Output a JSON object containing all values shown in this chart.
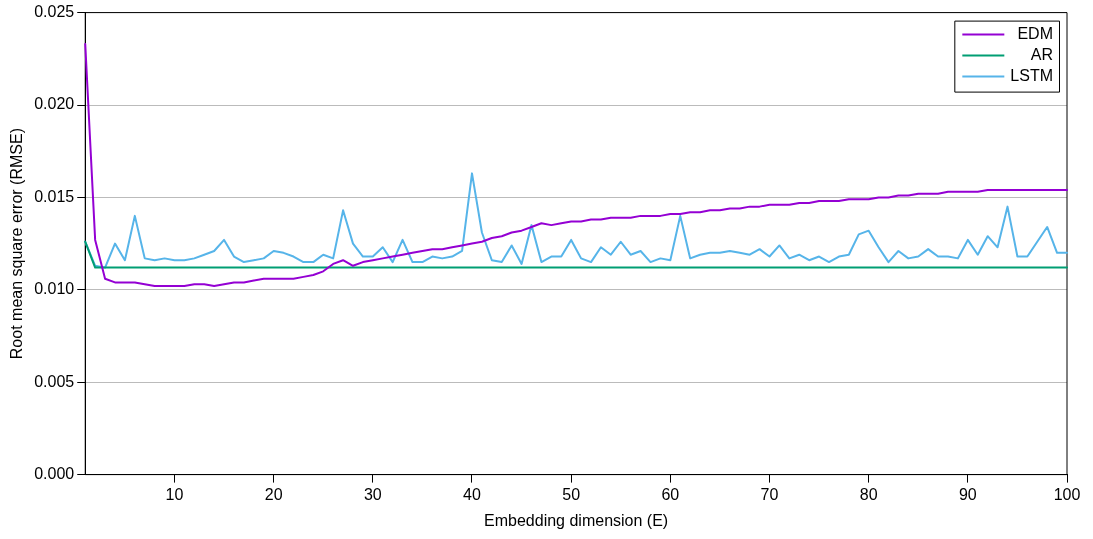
{
  "chart_data": {
    "type": "line",
    "xlabel": "Embedding dimension (E)",
    "ylabel": "Root mean square error (RMSE)",
    "x": [
      1,
      2,
      3,
      4,
      5,
      6,
      7,
      8,
      9,
      10,
      11,
      12,
      13,
      14,
      15,
      16,
      17,
      18,
      19,
      20,
      21,
      22,
      23,
      24,
      25,
      26,
      27,
      28,
      29,
      30,
      31,
      32,
      33,
      34,
      35,
      36,
      37,
      38,
      39,
      40,
      41,
      42,
      43,
      44,
      45,
      46,
      47,
      48,
      49,
      50,
      51,
      52,
      53,
      54,
      55,
      56,
      57,
      58,
      59,
      60,
      61,
      62,
      63,
      64,
      65,
      66,
      67,
      68,
      69,
      70,
      71,
      72,
      73,
      74,
      75,
      76,
      77,
      78,
      79,
      80,
      81,
      82,
      83,
      84,
      85,
      86,
      87,
      88,
      89,
      90,
      91,
      92,
      93,
      94,
      95,
      96,
      97,
      98,
      99,
      100
    ],
    "series": [
      {
        "name": "EDM",
        "color": "#9400d3",
        "values": [
          0.0233,
          0.0127,
          0.0106,
          0.0104,
          0.0104,
          0.0104,
          0.0103,
          0.0102,
          0.0102,
          0.0102,
          0.0102,
          0.0103,
          0.0103,
          0.0102,
          0.0103,
          0.0104,
          0.0104,
          0.0105,
          0.0106,
          0.0106,
          0.0106,
          0.0106,
          0.0107,
          0.0108,
          0.011,
          0.0114,
          0.0116,
          0.0113,
          0.0115,
          0.0116,
          0.0117,
          0.0118,
          0.0119,
          0.012,
          0.0121,
          0.0122,
          0.0122,
          0.0123,
          0.0124,
          0.0125,
          0.0126,
          0.0128,
          0.0129,
          0.0131,
          0.0132,
          0.0134,
          0.0136,
          0.0135,
          0.0136,
          0.0137,
          0.0137,
          0.0138,
          0.0138,
          0.0139,
          0.0139,
          0.0139,
          0.014,
          0.014,
          0.014,
          0.0141,
          0.0141,
          0.0142,
          0.0142,
          0.0143,
          0.0143,
          0.0144,
          0.0144,
          0.0145,
          0.0145,
          0.0146,
          0.0146,
          0.0146,
          0.0147,
          0.0147,
          0.0148,
          0.0148,
          0.0148,
          0.0149,
          0.0149,
          0.0149,
          0.015,
          0.015,
          0.0151,
          0.0151,
          0.0152,
          0.0152,
          0.0152,
          0.0153,
          0.0153,
          0.0153,
          0.0153,
          0.0154,
          0.0154,
          0.0154,
          0.0154,
          0.0154,
          0.0154,
          0.0154,
          0.0154,
          0.0154
        ]
      },
      {
        "name": "AR",
        "color": "#009e73",
        "values": [
          0.0126,
          0.0112,
          0.0112,
          0.0112,
          0.0112,
          0.0112,
          0.0112,
          0.0112,
          0.0112,
          0.0112,
          0.0112,
          0.0112,
          0.0112,
          0.0112,
          0.0112,
          0.0112,
          0.0112,
          0.0112,
          0.0112,
          0.0112,
          0.0112,
          0.0112,
          0.0112,
          0.0112,
          0.0112,
          0.0112,
          0.0112,
          0.0112,
          0.0112,
          0.0112,
          0.0112,
          0.0112,
          0.0112,
          0.0112,
          0.0112,
          0.0112,
          0.0112,
          0.0112,
          0.0112,
          0.0112,
          0.0112,
          0.0112,
          0.0112,
          0.0112,
          0.0112,
          0.0112,
          0.0112,
          0.0112,
          0.0112,
          0.0112,
          0.0112,
          0.0112,
          0.0112,
          0.0112,
          0.0112,
          0.0112,
          0.0112,
          0.0112,
          0.0112,
          0.0112,
          0.0112,
          0.0112,
          0.0112,
          0.0112,
          0.0112,
          0.0112,
          0.0112,
          0.0112,
          0.0112,
          0.0112,
          0.0112,
          0.0112,
          0.0112,
          0.0112,
          0.0112,
          0.0112,
          0.0112,
          0.0112,
          0.0112,
          0.0112,
          0.0112,
          0.0112,
          0.0112,
          0.0112,
          0.0112,
          0.0112,
          0.0112,
          0.0112,
          0.0112,
          0.0112,
          0.0112,
          0.0112,
          0.0112,
          0.0112,
          0.0112,
          0.0112,
          0.0112,
          0.0112,
          0.0112,
          0.0112
        ]
      },
      {
        "name": "LSTM",
        "color": "#56b4e9",
        "values": [
          0.0126,
          0.0113,
          0.0112,
          0.0125,
          0.0116,
          0.014,
          0.0117,
          0.0116,
          0.0117,
          0.0116,
          0.0116,
          0.0117,
          0.0119,
          0.0121,
          0.0127,
          0.0118,
          0.0115,
          0.0116,
          0.0117,
          0.0121,
          0.012,
          0.0118,
          0.0115,
          0.0115,
          0.0119,
          0.0117,
          0.0143,
          0.0125,
          0.0118,
          0.0118,
          0.0123,
          0.0115,
          0.0127,
          0.0115,
          0.0115,
          0.0118,
          0.0117,
          0.0118,
          0.0121,
          0.0163,
          0.0131,
          0.0116,
          0.0115,
          0.0124,
          0.0114,
          0.0135,
          0.0115,
          0.0118,
          0.0118,
          0.0127,
          0.0117,
          0.0115,
          0.0123,
          0.0119,
          0.0126,
          0.0119,
          0.0121,
          0.0115,
          0.0117,
          0.0116,
          0.014,
          0.0117,
          0.0119,
          0.012,
          0.012,
          0.0121,
          0.012,
          0.0119,
          0.0122,
          0.0118,
          0.0124,
          0.0117,
          0.0119,
          0.0116,
          0.0118,
          0.0115,
          0.0118,
          0.0119,
          0.013,
          0.0132,
          0.0123,
          0.0115,
          0.0121,
          0.0117,
          0.0118,
          0.0122,
          0.0118,
          0.0118,
          0.0117,
          0.0127,
          0.0119,
          0.0129,
          0.0123,
          0.0145,
          0.0118,
          0.0118,
          0.0126,
          0.0134,
          0.012,
          0.012
        ]
      }
    ],
    "xlim": [
      1,
      100
    ],
    "xticks": [
      10,
      20,
      30,
      40,
      50,
      60,
      70,
      80,
      90,
      100
    ],
    "ylim": [
      0,
      0.025
    ],
    "yticks": [
      {
        "value": 0,
        "label": "0.000"
      },
      {
        "value": 0.005,
        "label": "0.005"
      },
      {
        "value": 0.01,
        "label": "0.010"
      },
      {
        "value": 0.015,
        "label": "0.015"
      },
      {
        "value": 0.02,
        "label": "0.020"
      },
      {
        "value": 0.025,
        "label": "0.025"
      }
    ],
    "grid": "y",
    "legend": "top right",
    "marker": "none",
    "line_style": "solid"
  }
}
